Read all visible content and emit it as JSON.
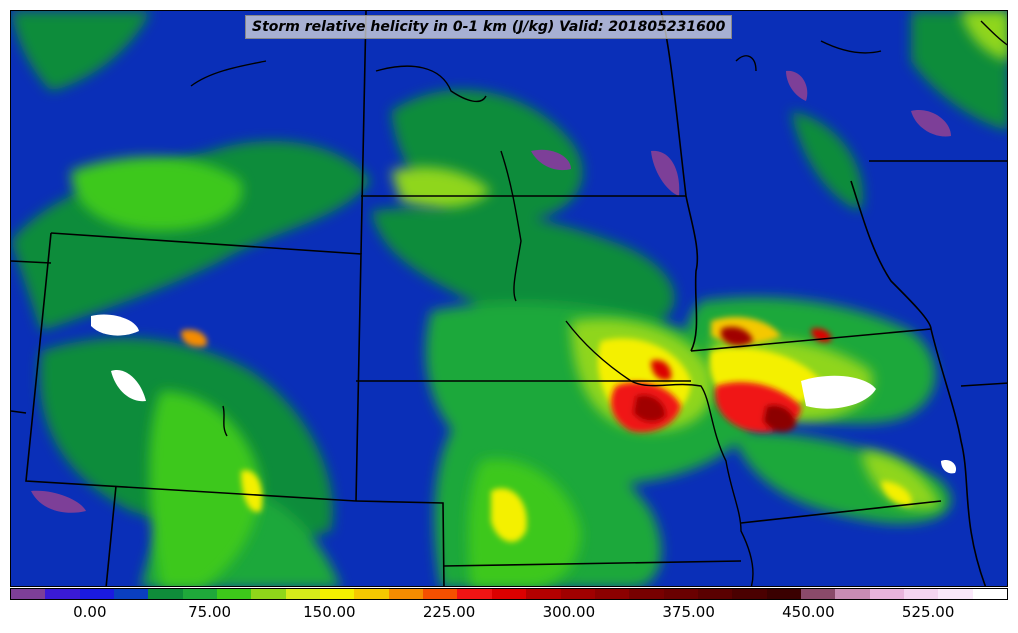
{
  "title": "Storm relative helicity in 0-1 km (J/kg) Valid: 201805231600",
  "colorbar": {
    "colors": [
      "#7d3f98",
      "#3a1ad6",
      "#1a1ae0",
      "#0a3fc0",
      "#0f8c3a",
      "#1fa83a",
      "#3dc81a",
      "#8fd61a",
      "#d6ea1a",
      "#f4f000",
      "#f5c800",
      "#f58c00",
      "#f55000",
      "#f01414",
      "#dc0000",
      "#b40000",
      "#a00000",
      "#8c0000",
      "#780000",
      "#6a0000",
      "#5a0000",
      "#4a0000",
      "#3a0000",
      "#8a4a6a",
      "#c88cb4",
      "#e8b4dc",
      "#f4d4f0",
      "#fae8fa",
      "#ffffff"
    ],
    "tick_labels": [
      "0.00",
      "75.00",
      "150.00",
      "225.00",
      "300.00",
      "375.00",
      "450.00",
      "525.00"
    ],
    "tick_values": [
      0,
      75,
      150,
      225,
      300,
      375,
      450,
      525
    ],
    "min": -50,
    "max": 575
  },
  "map": {
    "background_color": "#0a2fb8",
    "boundary_color": "#000000"
  }
}
